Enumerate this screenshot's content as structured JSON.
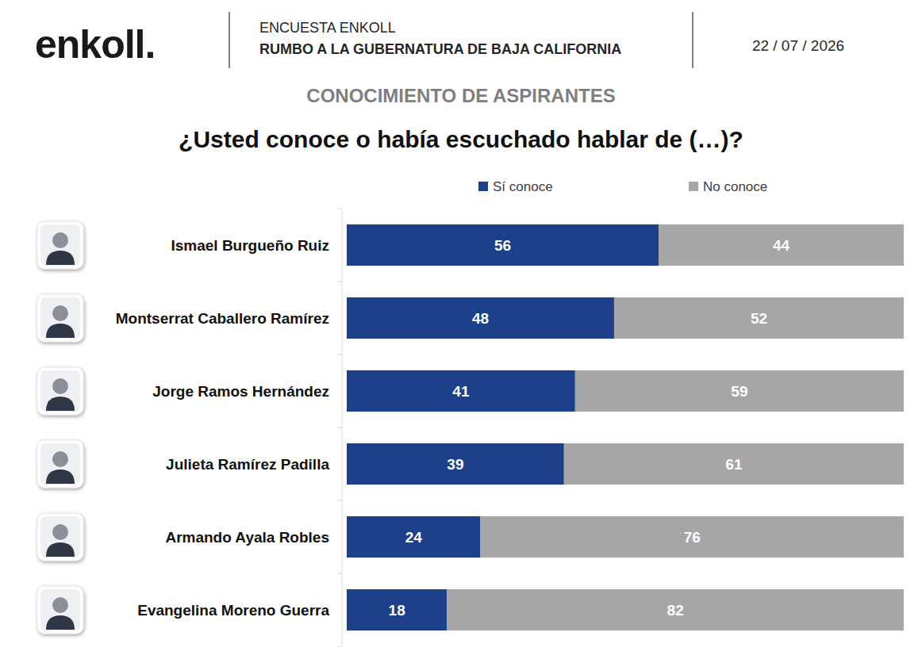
{
  "header": {
    "logo": "enkoll.",
    "kicker": "ENCUESTA ENKOLL",
    "headline": "RUMBO A LA GUBERNATURA DE BAJA CALIFORNIA",
    "date": "22 / 07 / 2026"
  },
  "chart_data": {
    "type": "bar",
    "subtitle": "CONOCIMIENTO DE ASPIRANTES",
    "title": "¿Usted conoce o había escuchado hablar de (…)?",
    "categories": [
      "Ismael Burgueño Ruiz",
      "Montserrat Caballero Ramírez",
      "Jorge Ramos Hernández",
      "Julieta Ramírez Padilla",
      "Armando Ayala Robles",
      "Evangelina Moreno Guerra"
    ],
    "series": [
      {
        "name": "Sí conoce",
        "color": "#1c418a",
        "values": [
          56,
          48,
          41,
          39,
          24,
          18
        ]
      },
      {
        "name": "No conoce",
        "color": "#a6a6a6",
        "values": [
          44,
          52,
          59,
          61,
          76,
          82
        ]
      }
    ],
    "xlim": [
      0,
      100
    ],
    "orientation": "horizontal",
    "stacked": true,
    "data_labels": true,
    "tick_labels": "y",
    "legend": "top"
  }
}
